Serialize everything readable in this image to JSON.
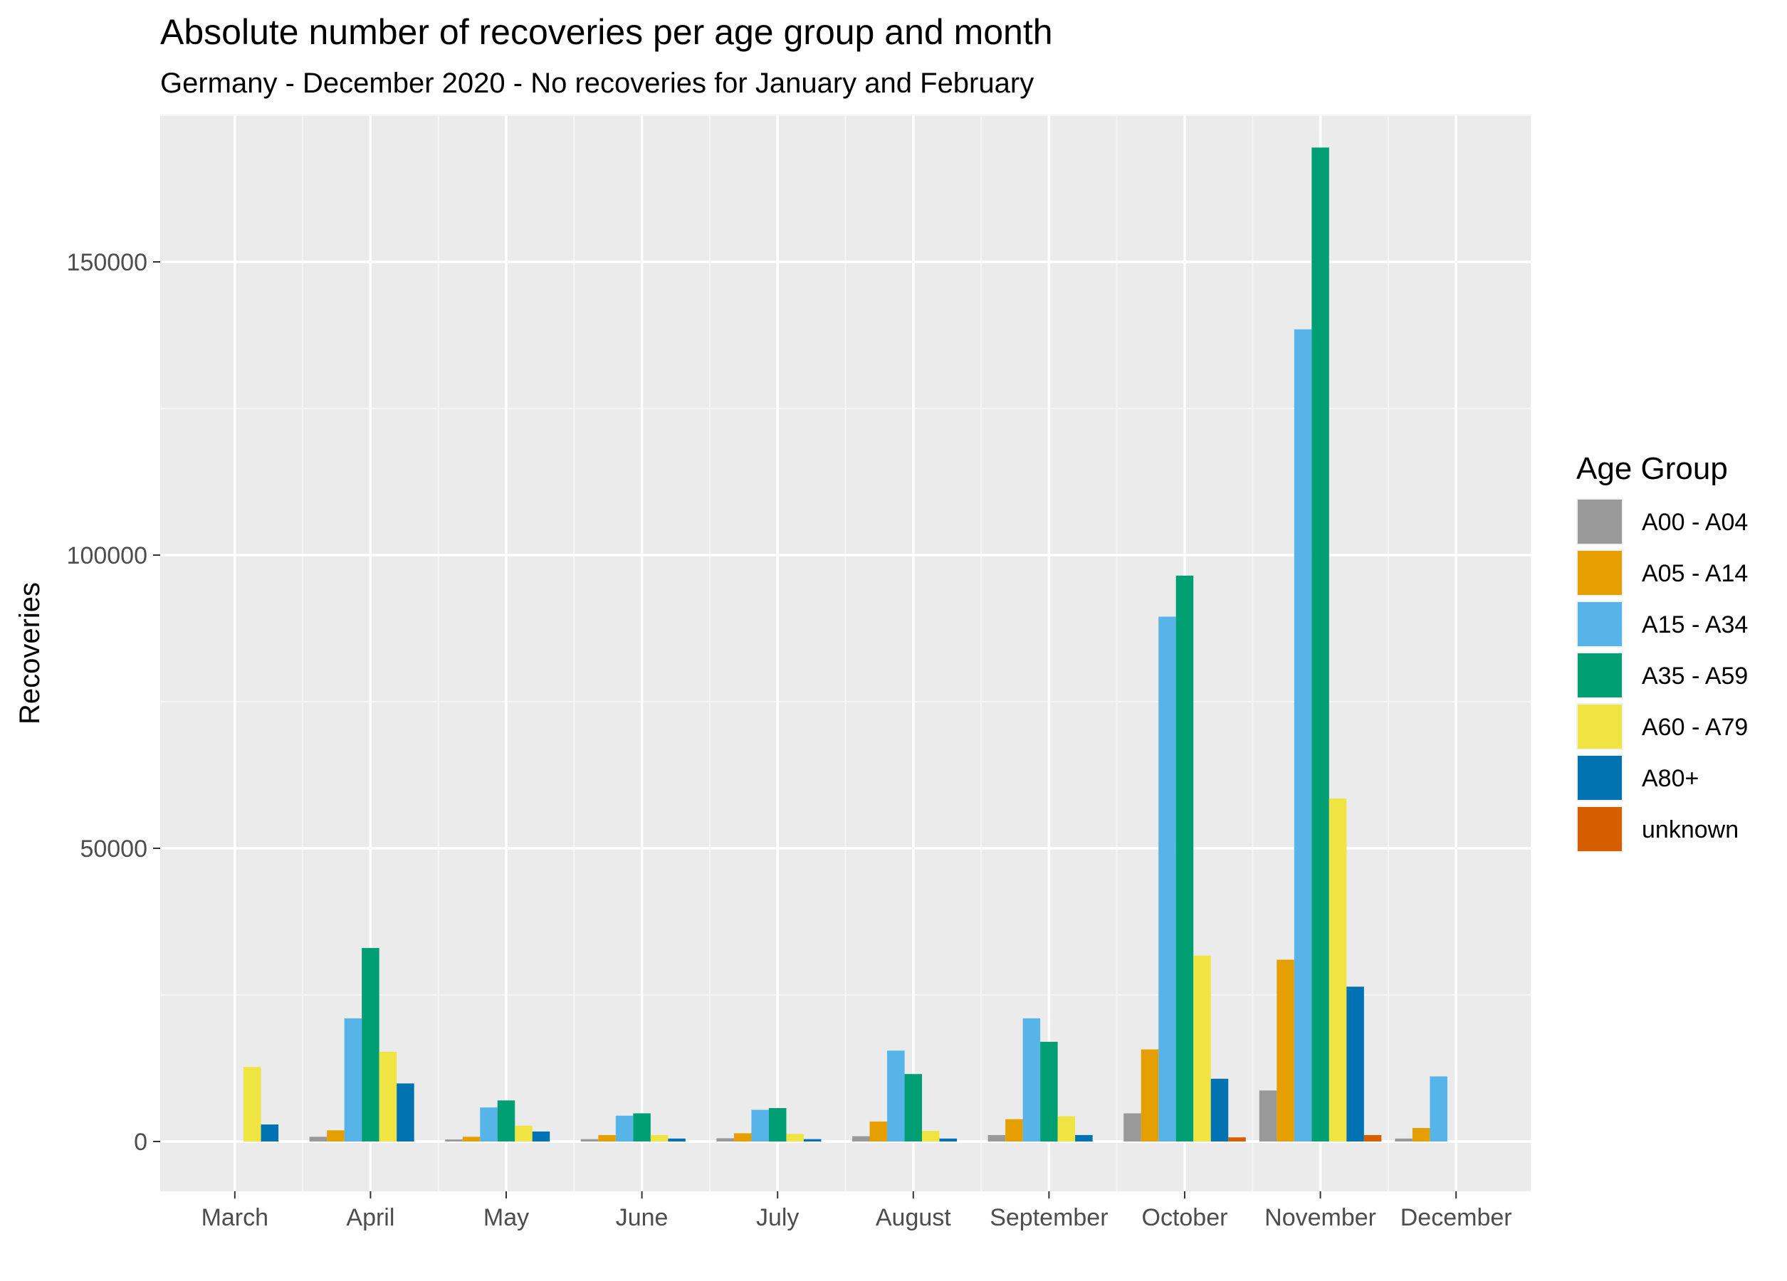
{
  "chart_data": {
    "type": "bar",
    "title": "Absolute number of recoveries per age group and month",
    "subtitle": "Germany - December 2020 - No recoveries for January and February",
    "xlabel": "",
    "ylabel": "Recoveries",
    "ylim": [
      -8500,
      175000
    ],
    "yticks": [
      0,
      50000,
      100000,
      150000
    ],
    "grid": true,
    "legend": {
      "title": "Age Group",
      "position": "right"
    },
    "categories": [
      "March",
      "April",
      "May",
      "June",
      "July",
      "August",
      "September",
      "October",
      "November",
      "December"
    ],
    "series": [
      {
        "name": "A00 - A04",
        "color": "#999999",
        "values": [
          0,
          800,
          350,
          400,
          550,
          900,
          1100,
          4800,
          8700,
          500
        ]
      },
      {
        "name": "A05 - A14",
        "color": "#E69F00",
        "values": [
          0,
          1900,
          800,
          1100,
          1400,
          3400,
          3800,
          15700,
          31000,
          2300
        ]
      },
      {
        "name": "A15 - A34",
        "color": "#56B4E9",
        "values": [
          0,
          21000,
          5800,
          4400,
          5400,
          15500,
          21000,
          89500,
          138500,
          11100
        ]
      },
      {
        "name": "A35 - A59",
        "color": "#009E73",
        "values": [
          0,
          33000,
          7000,
          4800,
          5700,
          11500,
          17000,
          96500,
          169500,
          0
        ]
      },
      {
        "name": "A60 - A79",
        "color": "#F0E442",
        "values": [
          12700,
          15300,
          2700,
          1100,
          1300,
          1800,
          4300,
          31700,
          58500,
          0
        ]
      },
      {
        "name": "A80+",
        "color": "#0072B2",
        "values": [
          2900,
          9900,
          1700,
          500,
          400,
          500,
          1100,
          10700,
          26400,
          0
        ]
      },
      {
        "name": "unknown",
        "color": "#D55E00",
        "values": [
          0,
          0,
          0,
          0,
          0,
          0,
          0,
          700,
          1100,
          0
        ]
      }
    ]
  }
}
